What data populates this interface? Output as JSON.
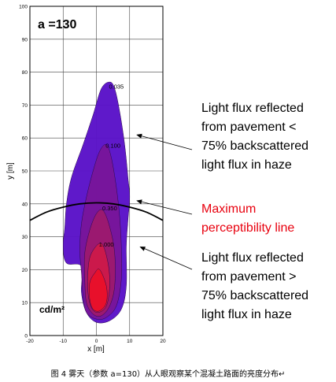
{
  "chart_data": {
    "type": "contour",
    "title": "a =130",
    "xlabel": "x [m]",
    "ylabel": "y [m]",
    "xlim": [
      -20,
      20
    ],
    "ylim": [
      0,
      100
    ],
    "x_ticks": [
      -20,
      -10,
      0,
      10,
      20
    ],
    "y_ticks": [
      0,
      10,
      20,
      30,
      40,
      50,
      60,
      70,
      80,
      90,
      100
    ],
    "grid": true,
    "unit_label": "cd/m²",
    "contour_levels": [
      {
        "label": "0.035",
        "value": 0.035,
        "color": "#5a12c8",
        "label_pos": [
          6,
          75
        ]
      },
      {
        "label": "0.100",
        "value": 0.1,
        "color": "#78169a",
        "label_pos": [
          5,
          57
        ]
      },
      {
        "label": "0.350",
        "value": 0.35,
        "color": "#9c1a6e",
        "label_pos": [
          4,
          38
        ]
      },
      {
        "label": "1.000",
        "value": 1.0,
        "color": "#cc1a4a",
        "label_pos": [
          3,
          27
        ]
      },
      {
        "label": "",
        "value": null,
        "color": "#e8112a",
        "label_pos": null
      }
    ],
    "regions": [
      {
        "level": 0.035,
        "outline": [
          [
            4,
            77
          ],
          [
            5.5,
            75
          ],
          [
            7,
            68
          ],
          [
            8.5,
            58
          ],
          [
            9.5,
            48
          ],
          [
            10,
            42
          ],
          [
            9.5,
            35
          ],
          [
            9,
            27
          ],
          [
            9,
            15
          ],
          [
            7.5,
            8
          ],
          [
            4,
            4.5
          ],
          [
            0,
            4
          ],
          [
            -3,
            7
          ],
          [
            -4.5,
            13
          ],
          [
            -4.5,
            21
          ],
          [
            -9,
            22
          ],
          [
            -10,
            27
          ],
          [
            -9.5,
            33
          ],
          [
            -9,
            40
          ],
          [
            -7.5,
            48
          ],
          [
            -4,
            58
          ],
          [
            -1,
            67
          ],
          [
            1.5,
            75
          ]
        ]
      },
      {
        "level": 0.1,
        "outline": [
          [
            3,
            58
          ],
          [
            4.5,
            54
          ],
          [
            6,
            45
          ],
          [
            7,
            36
          ],
          [
            7.5,
            27
          ],
          [
            7.5,
            17
          ],
          [
            6,
            9
          ],
          [
            3,
            5.5
          ],
          [
            0,
            5
          ],
          [
            -3,
            7
          ],
          [
            -4,
            12
          ],
          [
            -4.5,
            19
          ],
          [
            -5,
            26
          ],
          [
            -4.5,
            34
          ],
          [
            -3,
            42
          ],
          [
            -1,
            50
          ],
          [
            1,
            56
          ]
        ]
      },
      {
        "level": 0.35,
        "outline": [
          [
            2,
            38
          ],
          [
            4,
            33
          ],
          [
            5.5,
            25
          ],
          [
            5.5,
            15
          ],
          [
            4,
            9
          ],
          [
            1.5,
            6
          ],
          [
            -1,
            6.5
          ],
          [
            -3,
            10
          ],
          [
            -3.5,
            17
          ],
          [
            -3.5,
            25
          ],
          [
            -2,
            32
          ],
          [
            0,
            37
          ]
        ]
      },
      {
        "level": 1.0,
        "outline": [
          [
            1.5,
            28
          ],
          [
            3.5,
            22
          ],
          [
            4,
            15
          ],
          [
            3,
            9
          ],
          [
            0.5,
            7
          ],
          [
            -1.5,
            8.5
          ],
          [
            -2.5,
            13
          ],
          [
            -2.5,
            20
          ],
          [
            -1.5,
            25
          ]
        ]
      },
      {
        "level": "core",
        "outline": [
          [
            1,
            20
          ],
          [
            3,
            15
          ],
          [
            3,
            10
          ],
          [
            1,
            7.5
          ],
          [
            -1,
            8
          ],
          [
            -2,
            11
          ],
          [
            -2,
            16
          ],
          [
            -0.5,
            19
          ]
        ]
      }
    ],
    "perceptibility_line": [
      [
        -20,
        35
      ],
      [
        -15,
        37.5
      ],
      [
        -10,
        39
      ],
      [
        -5,
        40
      ],
      [
        0,
        40.3
      ],
      [
        5,
        40
      ],
      [
        10,
        39
      ],
      [
        15,
        37.5
      ],
      [
        20,
        35
      ]
    ],
    "annotations": [
      {
        "text_lines": [
          "Light flux reflected",
          "from pavement <",
          "75% backscattered",
          "light flux in haze"
        ],
        "color": "#000000",
        "arrow_to": [
          12,
          61
        ]
      },
      {
        "text_lines": [
          "Maximum",
          "perceptibility line"
        ],
        "color": "#e8000e",
        "arrow_to": [
          12,
          41
        ]
      },
      {
        "text_lines": [
          "Light flux reflected",
          "from pavement >",
          "75% backscattered",
          "light flux in haze"
        ],
        "color": "#000000",
        "arrow_to": [
          13,
          27
        ]
      }
    ]
  },
  "caption": "图 4  雾天（参数 a=130）从人眼观察某个混凝土路面的亮度分布↵"
}
